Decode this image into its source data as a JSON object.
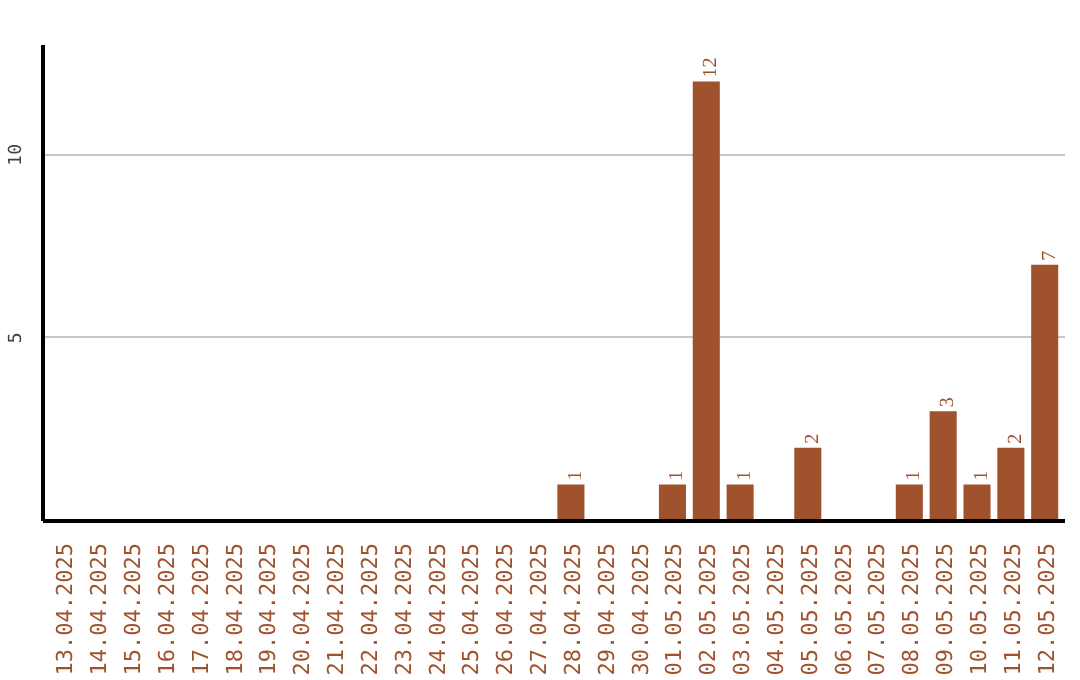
{
  "chart_data": {
    "type": "bar",
    "categories": [
      "13.04.2025",
      "14.04.2025",
      "15.04.2025",
      "16.04.2025",
      "17.04.2025",
      "18.04.2025",
      "19.04.2025",
      "20.04.2025",
      "21.04.2025",
      "22.04.2025",
      "23.04.2025",
      "24.04.2025",
      "25.04.2025",
      "26.04.2025",
      "27.04.2025",
      "28.04.2025",
      "29.04.2025",
      "30.04.2025",
      "01.05.2025",
      "02.05.2025",
      "03.05.2025",
      "04.05.2025",
      "05.05.2025",
      "06.05.2025",
      "07.05.2025",
      "08.05.2025",
      "09.05.2025",
      "10.05.2025",
      "11.05.2025",
      "12.05.2025"
    ],
    "values": [
      0,
      0,
      0,
      0,
      0,
      0,
      0,
      0,
      0,
      0,
      0,
      0,
      0,
      0,
      0,
      1,
      0,
      0,
      1,
      12,
      1,
      0,
      2,
      0,
      0,
      1,
      3,
      1,
      2,
      7
    ],
    "value_labels": [
      null,
      null,
      null,
      null,
      null,
      null,
      null,
      null,
      null,
      null,
      null,
      null,
      null,
      null,
      null,
      "1",
      null,
      null,
      "1",
      "12",
      "1",
      null,
      "2",
      null,
      null,
      "1",
      "3",
      "1",
      "2",
      "7"
    ],
    "color": "#a0522d",
    "ylim": [
      0,
      13
    ],
    "yticks": [
      5,
      10
    ],
    "grid": "y"
  }
}
